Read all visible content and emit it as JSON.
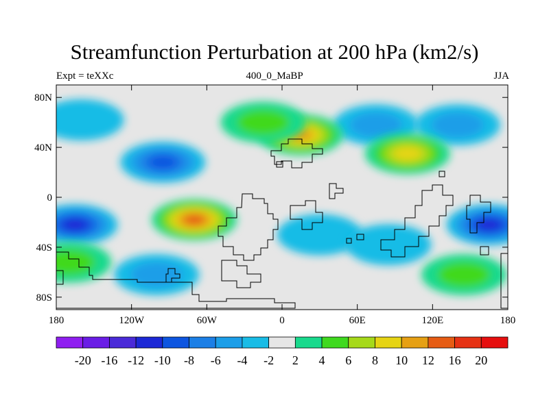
{
  "title": "Streamfunction Perturbation at 200 hPa (km2/s)",
  "subtitle_left": "Expt = teXXc",
  "subtitle_center": "400_0_MaBP",
  "subtitle_right": "JJA",
  "chart_data": {
    "type": "heatmap",
    "variable": "Streamfunction Perturbation at 200 hPa",
    "units": "km2/s",
    "lon_range": [
      -180,
      180
    ],
    "lat_range": [
      -90,
      90
    ],
    "lat_ticks": [
      "80N",
      "40N",
      "0",
      "40S",
      "80S"
    ],
    "lon_ticks": [
      "180",
      "120W",
      "60W",
      "0",
      "60E",
      "120E",
      "180"
    ],
    "colorbar": {
      "levels": [
        "-20",
        "-16",
        "-12",
        "-10",
        "-8",
        "-6",
        "-4",
        "-2",
        "2",
        "4",
        "6",
        "8",
        "10",
        "12",
        "16",
        "20"
      ],
      "colors": [
        "#8f1ef0",
        "#6a1de6",
        "#4a2ad8",
        "#1c28d6",
        "#0d55e0",
        "#1c7fe6",
        "#1c9ee8",
        "#19bce6",
        "#e6e6e6",
        "#19d98c",
        "#3fd91f",
        "#a6d91a",
        "#e6d414",
        "#e6a014",
        "#e65c14",
        "#e63214",
        "#e60f0f"
      ]
    },
    "features": [
      {
        "kind": "negative",
        "lon": 165,
        "lat": -22,
        "peak": -10
      },
      {
        "kind": "negative",
        "lon": -165,
        "lat": -22,
        "peak": -10
      },
      {
        "kind": "negative",
        "lon": -95,
        "lat": 28,
        "peak": -8
      },
      {
        "kind": "negative",
        "lon": -100,
        "lat": -62,
        "peak": -4
      },
      {
        "kind": "negative",
        "lon": 75,
        "lat": 58,
        "peak": -4
      },
      {
        "kind": "negative",
        "lon": 140,
        "lat": 58,
        "peak": -4
      },
      {
        "kind": "negative",
        "lon": 30,
        "lat": -30,
        "peak": -2
      },
      {
        "kind": "negative",
        "lon": 85,
        "lat": -38,
        "peak": -2
      },
      {
        "kind": "negative",
        "lon": -160,
        "lat": 62,
        "peak": -2
      },
      {
        "kind": "positive",
        "lon": -70,
        "lat": -18,
        "peak": 12
      },
      {
        "kind": "positive",
        "lon": 15,
        "lat": 50,
        "peak": 10
      },
      {
        "kind": "positive",
        "lon": 100,
        "lat": 35,
        "peak": 8
      },
      {
        "kind": "positive",
        "lon": 145,
        "lat": -62,
        "peak": 4
      },
      {
        "kind": "positive",
        "lon": -170,
        "lat": -52,
        "peak": 4
      },
      {
        "kind": "positive",
        "lon": -15,
        "lat": 60,
        "peak": 4
      }
    ]
  }
}
